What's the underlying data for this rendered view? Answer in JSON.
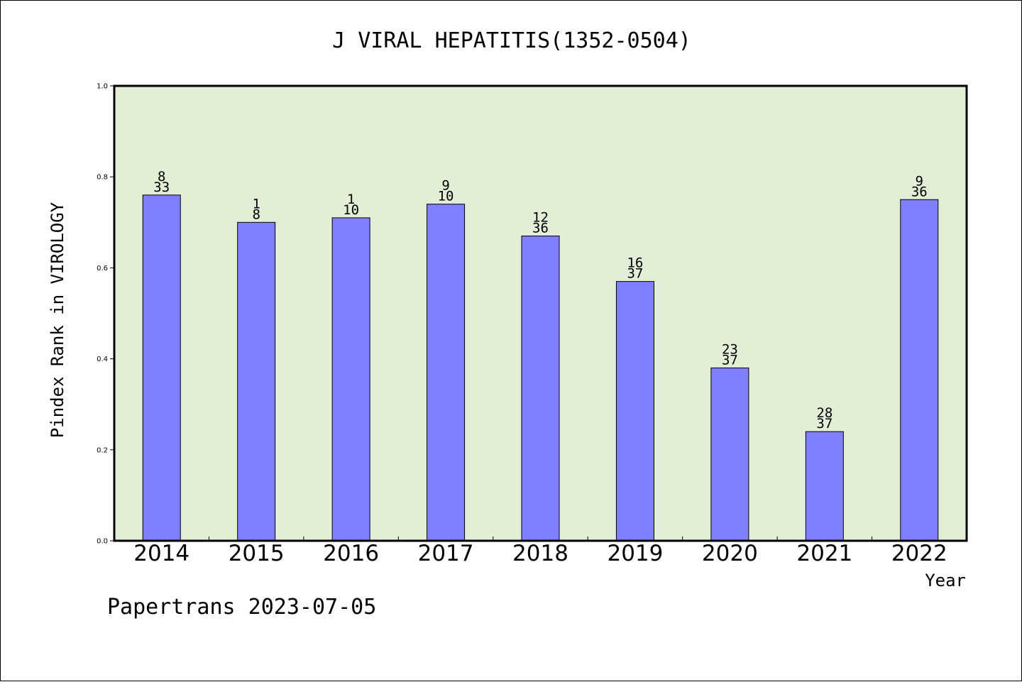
{
  "chart_data": {
    "type": "bar",
    "title": "J VIRAL HEPATITIS(1352-0504)",
    "xlabel": "Year",
    "ylabel": "Pindex Rank in VIROLOGY",
    "footer": "Papertrans 2023-07-05",
    "categories": [
      "2014",
      "2015",
      "2016",
      "2017",
      "2018",
      "2019",
      "2020",
      "2021",
      "2022"
    ],
    "values": [
      0.76,
      0.7,
      0.71,
      0.74,
      0.67,
      0.57,
      0.38,
      0.24,
      0.75
    ],
    "label_top": [
      "8",
      "1",
      "1",
      "9",
      "12",
      "16",
      "23",
      "28",
      "9"
    ],
    "label_bottom": [
      "33",
      "8",
      "10",
      "10",
      "36",
      "37",
      "37",
      "37",
      "36"
    ],
    "ylim": [
      0,
      1
    ],
    "yticks": [
      "0.0",
      "0.2",
      "0.4",
      "0.6",
      "0.8",
      "1.0"
    ],
    "grid": false,
    "colors": {
      "bar": "#8080ff",
      "plot_background": "#e2efd6",
      "axis": "#000000"
    }
  }
}
